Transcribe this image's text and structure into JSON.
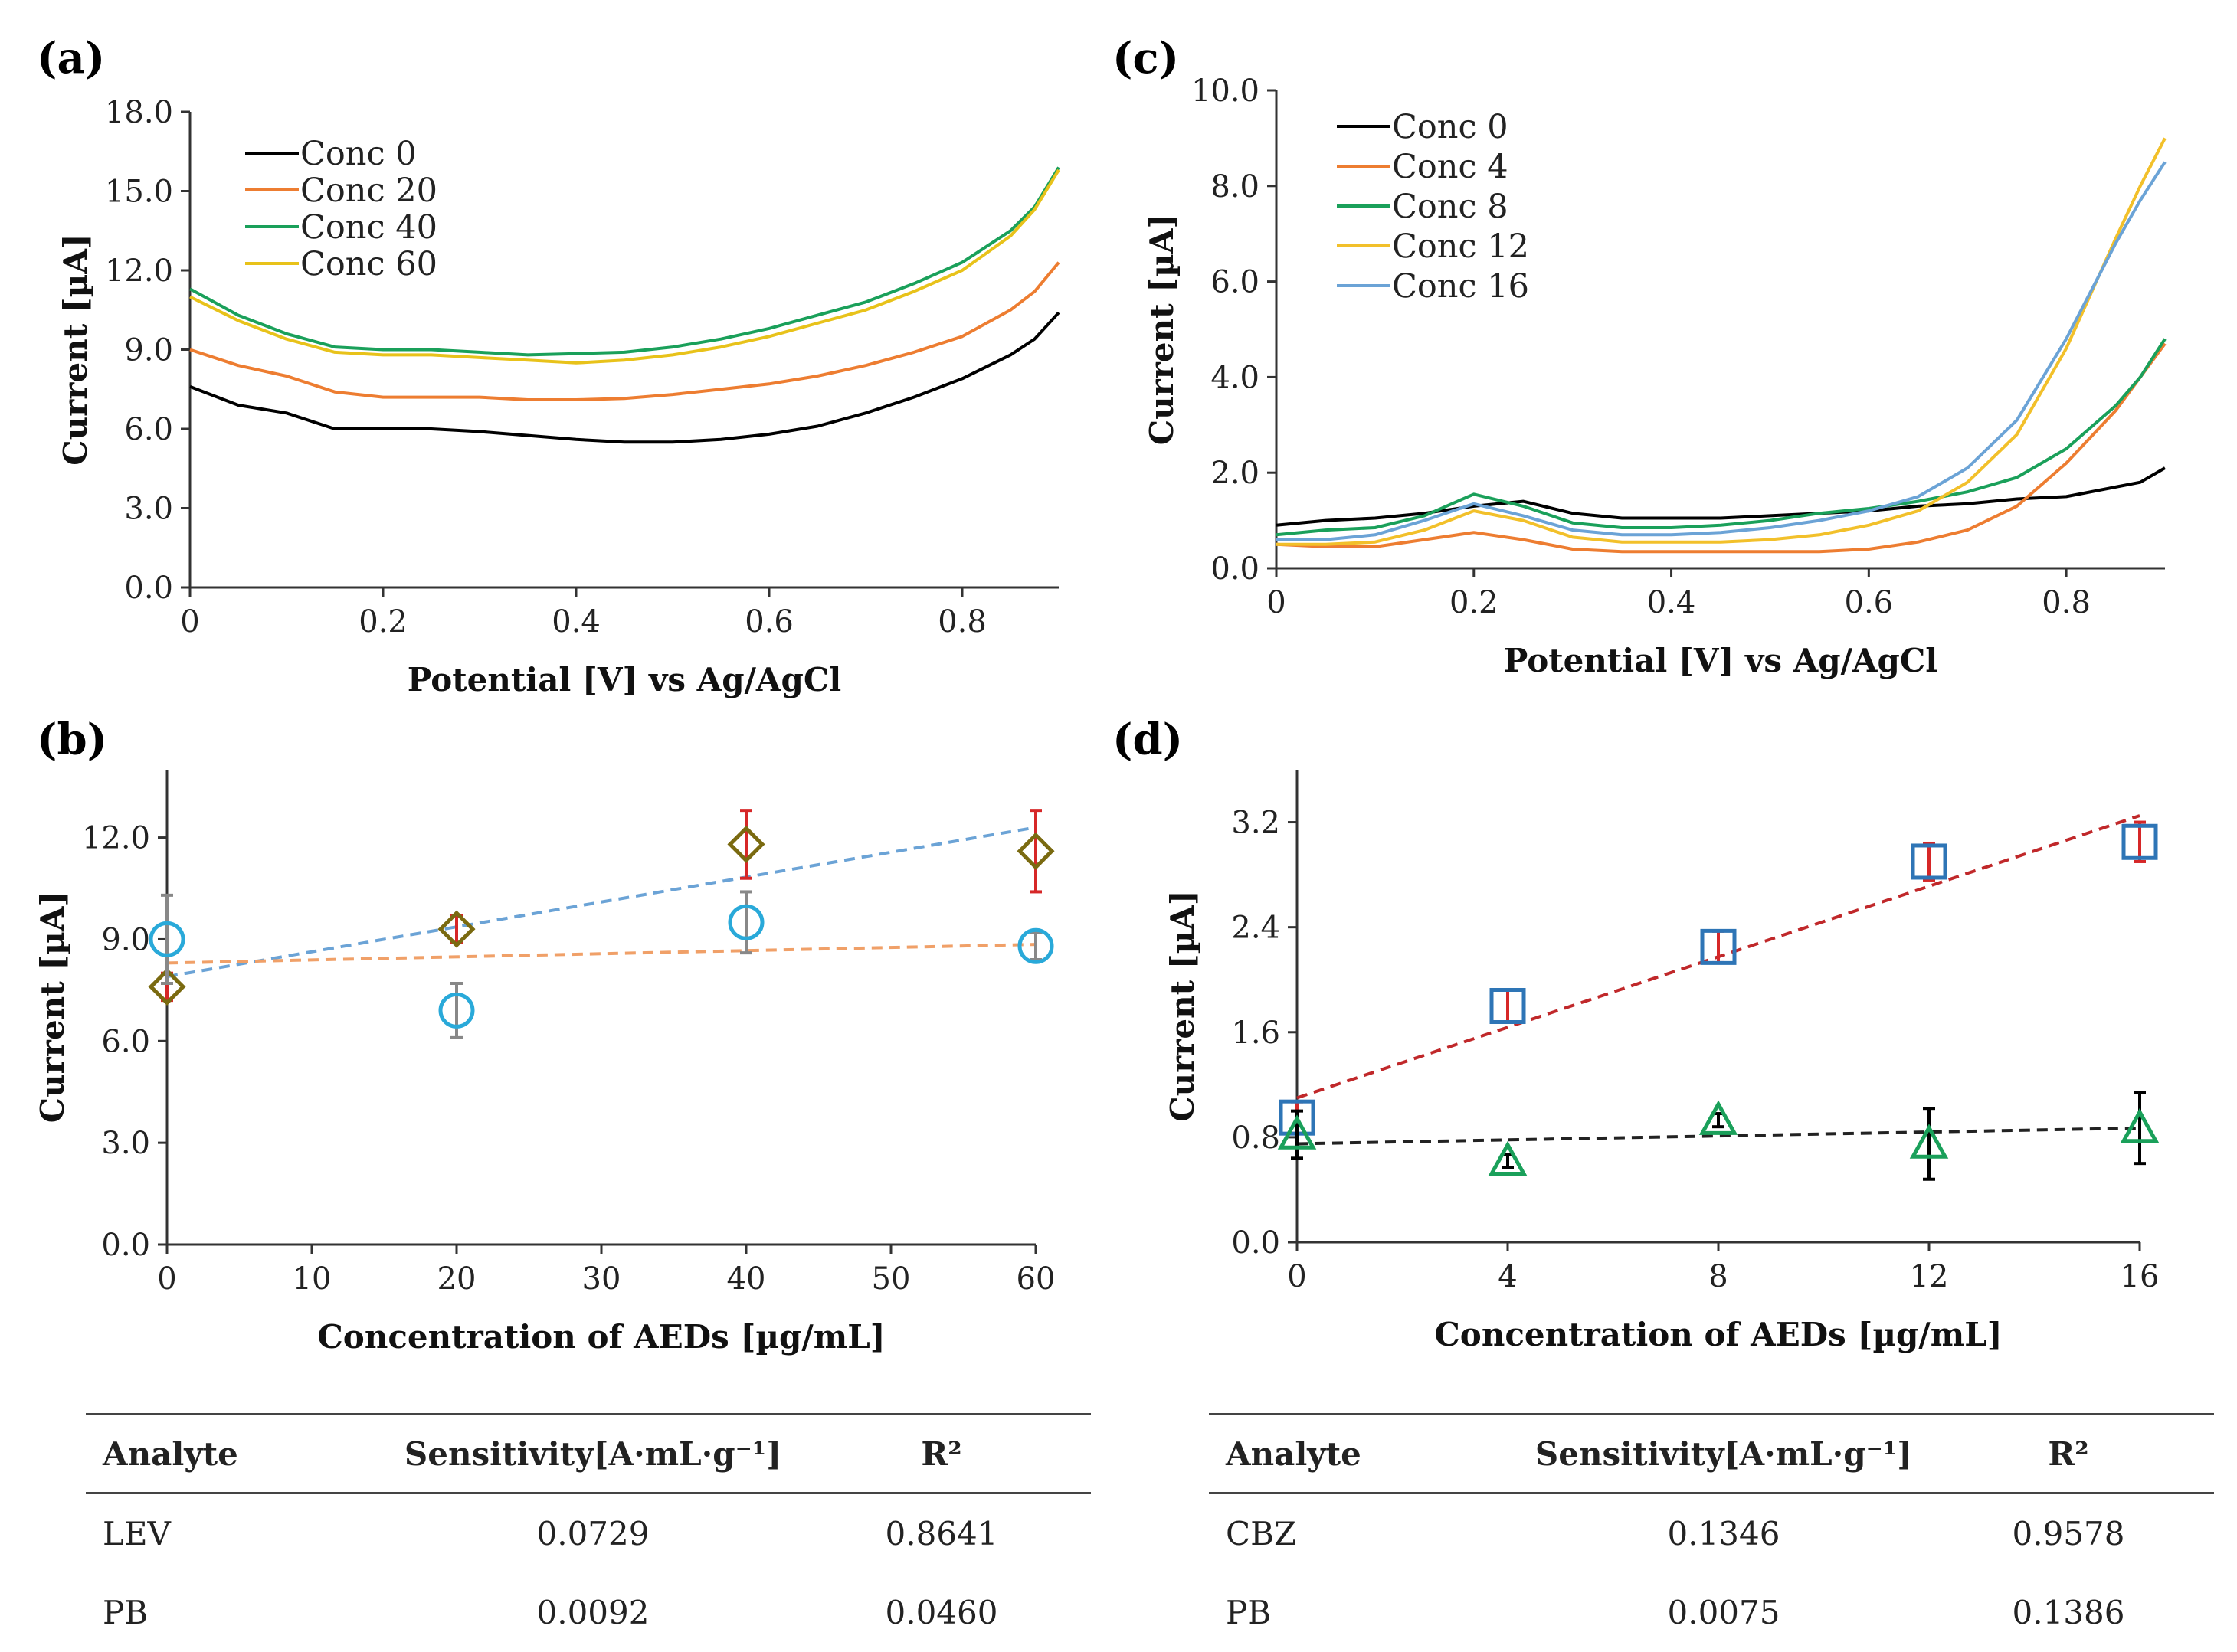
{
  "panels": {
    "a": "(a)",
    "b": "(b)",
    "c": "(c)",
    "d": "(d)"
  },
  "chart_data": [
    {
      "id": "a",
      "type": "line",
      "xlabel": "Potential [V] vs Ag/AgCl",
      "ylabel": "Current [µA]",
      "xlim": [
        0,
        0.9
      ],
      "ylim": [
        0,
        18
      ],
      "xticks": [
        0,
        0.2,
        0.4,
        0.6,
        0.8
      ],
      "xtick_labels": [
        "0",
        "0.2",
        "0.4",
        "0.6",
        "0.8"
      ],
      "yticks": [
        0,
        3,
        6,
        9,
        12,
        15,
        18
      ],
      "ytick_labels": [
        "0.0",
        "3.0",
        "6.0",
        "9.0",
        "12.0",
        "15.0",
        "18.0"
      ],
      "legend_position": "top-left",
      "x": [
        0,
        0.05,
        0.1,
        0.15,
        0.2,
        0.25,
        0.3,
        0.35,
        0.4,
        0.45,
        0.5,
        0.55,
        0.6,
        0.65,
        0.7,
        0.75,
        0.8,
        0.85,
        0.875,
        0.9
      ],
      "series": [
        {
          "name": "Conc 0",
          "color": "#000000",
          "values": [
            7.6,
            6.9,
            6.6,
            6.0,
            6.0,
            6.0,
            5.9,
            5.75,
            5.6,
            5.5,
            5.5,
            5.6,
            5.8,
            6.1,
            6.6,
            7.2,
            7.9,
            8.8,
            9.4,
            10.4
          ]
        },
        {
          "name": "Conc 20",
          "color": "#ED7D31",
          "values": [
            9.0,
            8.4,
            8.0,
            7.4,
            7.2,
            7.2,
            7.2,
            7.1,
            7.1,
            7.15,
            7.3,
            7.5,
            7.7,
            8.0,
            8.4,
            8.9,
            9.5,
            10.5,
            11.2,
            12.3
          ]
        },
        {
          "name": "Conc 40",
          "color": "#1AA05A",
          "values": [
            11.3,
            10.3,
            9.6,
            9.1,
            9.0,
            9.0,
            8.9,
            8.8,
            8.85,
            8.9,
            9.1,
            9.4,
            9.8,
            10.3,
            10.8,
            11.5,
            12.3,
            13.5,
            14.4,
            15.9
          ]
        },
        {
          "name": "Conc 60",
          "color": "#E8C21A",
          "values": [
            11.0,
            10.1,
            9.4,
            8.9,
            8.8,
            8.8,
            8.7,
            8.6,
            8.5,
            8.6,
            8.8,
            9.1,
            9.5,
            10.0,
            10.5,
            11.2,
            12.0,
            13.3,
            14.3,
            15.8
          ]
        }
      ]
    },
    {
      "id": "b",
      "type": "scatter",
      "xlabel": "Concentration of AEDs [µg/mL]",
      "ylabel": "Current [µA]",
      "xlim": [
        0,
        60
      ],
      "ylim": [
        0,
        14
      ],
      "xticks": [
        0,
        10,
        20,
        30,
        40,
        50,
        60
      ],
      "xtick_labels": [
        "0",
        "10",
        "20",
        "30",
        "40",
        "50",
        "60"
      ],
      "yticks": [
        0,
        3,
        6,
        9,
        12
      ],
      "ytick_labels": [
        "0.0",
        "3.0",
        "6.0",
        "9.0",
        "12.0"
      ],
      "series": [
        {
          "name": "LEV",
          "marker": "diamond",
          "color": "#7A6A10",
          "err_color": "#D62728",
          "x": [
            0,
            20,
            40,
            60
          ],
          "values": [
            7.6,
            9.3,
            11.8,
            11.6
          ],
          "err": [
            0.4,
            0.4,
            1.0,
            1.2
          ],
          "fit": [
            7.9,
            12.3
          ],
          "fit_color": "#6BA3D6"
        },
        {
          "name": "PB",
          "marker": "circle",
          "color": "#29A9D9",
          "err_color": "#888888",
          "x": [
            0,
            20,
            40,
            60
          ],
          "values": [
            9.0,
            6.9,
            9.5,
            8.8
          ],
          "err": [
            1.3,
            0.8,
            0.9,
            0.4
          ],
          "fit": [
            8.3,
            8.85
          ],
          "fit_color": "#F0A068"
        }
      ]
    },
    {
      "id": "c",
      "type": "line",
      "xlabel": "Potential [V] vs Ag/AgCl",
      "ylabel": "Current [µA]",
      "xlim": [
        0,
        0.9
      ],
      "ylim": [
        0,
        10
      ],
      "xticks": [
        0,
        0.2,
        0.4,
        0.6,
        0.8
      ],
      "xtick_labels": [
        "0",
        "0.2",
        "0.4",
        "0.6",
        "0.8"
      ],
      "yticks": [
        0,
        2,
        4,
        6,
        8,
        10
      ],
      "ytick_labels": [
        "0.0",
        "2.0",
        "4.0",
        "6.0",
        "8.0",
        "10.0"
      ],
      "legend_position": "top-left",
      "x": [
        0,
        0.05,
        0.1,
        0.15,
        0.2,
        0.25,
        0.3,
        0.35,
        0.4,
        0.45,
        0.5,
        0.55,
        0.6,
        0.65,
        0.7,
        0.75,
        0.8,
        0.85,
        0.875,
        0.9
      ],
      "series": [
        {
          "name": "Conc 0",
          "color": "#000000",
          "values": [
            0.9,
            1.0,
            1.05,
            1.15,
            1.3,
            1.4,
            1.15,
            1.05,
            1.05,
            1.05,
            1.1,
            1.15,
            1.2,
            1.3,
            1.35,
            1.45,
            1.5,
            1.7,
            1.8,
            2.1
          ]
        },
        {
          "name": "Conc 4",
          "color": "#ED7D31",
          "values": [
            0.5,
            0.45,
            0.45,
            0.6,
            0.75,
            0.6,
            0.4,
            0.35,
            0.35,
            0.35,
            0.35,
            0.35,
            0.4,
            0.55,
            0.8,
            1.3,
            2.2,
            3.3,
            4.0,
            4.7
          ]
        },
        {
          "name": "Conc 8",
          "color": "#1AA05A",
          "values": [
            0.7,
            0.8,
            0.85,
            1.1,
            1.55,
            1.3,
            0.95,
            0.85,
            0.85,
            0.9,
            1.0,
            1.15,
            1.25,
            1.4,
            1.6,
            1.9,
            2.5,
            3.4,
            4.0,
            4.8
          ]
        },
        {
          "name": "Conc 12",
          "color": "#F2C02A",
          "values": [
            0.5,
            0.5,
            0.55,
            0.8,
            1.2,
            1.0,
            0.65,
            0.55,
            0.55,
            0.55,
            0.6,
            0.7,
            0.9,
            1.2,
            1.8,
            2.8,
            4.6,
            6.9,
            8.0,
            9.0
          ]
        },
        {
          "name": "Conc 16",
          "color": "#6BA3D6",
          "values": [
            0.6,
            0.6,
            0.7,
            1.0,
            1.35,
            1.1,
            0.8,
            0.7,
            0.7,
            0.75,
            0.85,
            1.0,
            1.2,
            1.5,
            2.1,
            3.1,
            4.8,
            6.8,
            7.7,
            8.5
          ]
        }
      ]
    },
    {
      "id": "d",
      "type": "scatter",
      "xlabel": "Concentration of AEDs [µg/mL]",
      "ylabel": "Current [µA]",
      "xlim": [
        0,
        16
      ],
      "ylim": [
        0,
        3.6
      ],
      "xticks": [
        0,
        4,
        8,
        12,
        16
      ],
      "xtick_labels": [
        "0",
        "4",
        "8",
        "12",
        "16"
      ],
      "yticks": [
        0,
        0.8,
        1.6,
        2.4,
        3.2
      ],
      "ytick_labels": [
        "0.0",
        "0.8",
        "1.6",
        "2.4",
        "3.2"
      ],
      "series": [
        {
          "name": "CBZ",
          "marker": "square",
          "color": "#2E75B6",
          "err_color": "#D62728",
          "x": [
            0,
            4,
            8,
            12,
            16
          ],
          "values": [
            0.95,
            1.8,
            2.25,
            2.9,
            3.05
          ],
          "err": [
            0.12,
            0.12,
            0.12,
            0.14,
            0.15
          ],
          "fit": [
            1.1,
            3.25
          ],
          "fit_color": "#C0282A"
        },
        {
          "name": "PB",
          "marker": "triangle",
          "color": "#1AA05A",
          "err_color": "#000000",
          "x": [
            0,
            4,
            8,
            12,
            16
          ],
          "values": [
            0.82,
            0.62,
            0.93,
            0.75,
            0.87
          ],
          "err": [
            0.18,
            0.05,
            0.05,
            0.27,
            0.27
          ],
          "fit": [
            0.75,
            0.87
          ],
          "fit_color": "#222222"
        }
      ]
    }
  ],
  "tables": {
    "left": {
      "headers": [
        "Analyte",
        "Sensitivity[A·mL·g⁻¹]",
        "R²"
      ],
      "rows": [
        [
          "LEV",
          "0.0729",
          "0.8641"
        ],
        [
          "PB",
          "0.0092",
          "0.0460"
        ]
      ]
    },
    "right": {
      "headers": [
        "Analyte",
        "Sensitivity[A·mL·g⁻¹]",
        "R²"
      ],
      "rows": [
        [
          "CBZ",
          "0.1346",
          "0.9578"
        ],
        [
          "PB",
          "0.0075",
          "0.1386"
        ]
      ]
    }
  }
}
